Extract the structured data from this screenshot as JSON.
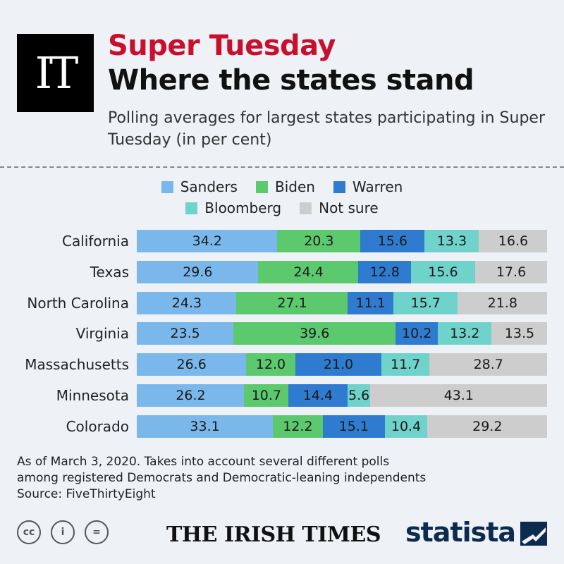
{
  "header": {
    "logo_text": "IT",
    "title_line1": "Super Tuesday",
    "title_line2": "Where the states stand",
    "subtitle": "Polling averages for largest states participating in Super Tuesday (in per cent)"
  },
  "colors": {
    "Sanders": "#7ab8ec",
    "Biden": "#5cc96e",
    "Warren": "#2f7bd0",
    "Bloomberg": "#6fd3cc",
    "Not sure": "#cdcdcd",
    "title_red": "#c8102e",
    "statista_navy": "#0d2b4f"
  },
  "chart_data": {
    "type": "bar",
    "orientation": "horizontal",
    "stacked": true,
    "title": "Super Tuesday — Where the states stand",
    "categories": [
      "California",
      "Texas",
      "North Carolina",
      "Virginia",
      "Massachusetts",
      "Minnesota",
      "Colorado"
    ],
    "series": [
      {
        "name": "Sanders",
        "values": [
          34.2,
          29.6,
          24.3,
          23.5,
          26.6,
          26.2,
          33.1
        ]
      },
      {
        "name": "Biden",
        "values": [
          20.3,
          24.4,
          27.1,
          39.6,
          12.0,
          10.7,
          12.2
        ]
      },
      {
        "name": "Warren",
        "values": [
          15.6,
          12.8,
          11.1,
          10.2,
          21.0,
          14.4,
          15.1
        ]
      },
      {
        "name": "Bloomberg",
        "values": [
          13.3,
          15.6,
          15.7,
          13.2,
          11.7,
          5.6,
          10.4
        ]
      },
      {
        "name": "Not sure",
        "values": [
          16.6,
          17.6,
          21.8,
          13.5,
          28.7,
          43.1,
          29.2
        ]
      }
    ],
    "legend": [
      [
        "Sanders",
        "Biden",
        "Warren"
      ],
      [
        "Bloomberg",
        "Not sure"
      ]
    ],
    "legend_position": "top",
    "unit": "per cent"
  },
  "footer": {
    "note_line1": "As of March 3, 2020. Takes into account several different polls",
    "note_line2": "among registered Democrats and Democratic-leaning independents",
    "source": "Source: FiveThirtyEight",
    "cc_icons": [
      "cc-icon",
      "attribution-icon",
      "no-derivatives-icon"
    ],
    "cc_glyphs": [
      "cc",
      "i",
      "="
    ],
    "publisher": "THE IRISH TIMES",
    "brand": "statista"
  }
}
